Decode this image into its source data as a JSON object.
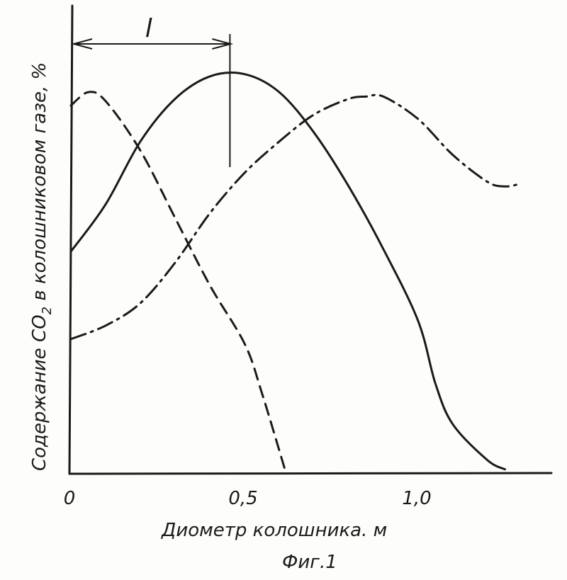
{
  "chart_data": {
    "type": "line",
    "title": "",
    "xlabel": "Диометр колошника. м",
    "ylabel_main": "Содержание CO",
    "ylabel_sub": "2",
    "ylabel_rest": " в колошниковом газе, %",
    "caption": "Фиг.1",
    "xlim": [
      0,
      1.4
    ],
    "ylim": [
      0,
      100
    ],
    "yticks_shown": false,
    "grid": false,
    "x_ticks": [
      {
        "value": 0,
        "label": "0"
      },
      {
        "value": 0.5,
        "label": "0,5"
      },
      {
        "value": 1.0,
        "label": "1,0"
      }
    ],
    "annotation": {
      "label": "l",
      "x_from": 0,
      "x_to": 0.46,
      "y": 96
    },
    "series": [
      {
        "style": "solid",
        "color": "#1a1a1a",
        "points": [
          [
            0,
            49.5
          ],
          [
            0.1,
            60
          ],
          [
            0.2,
            74
          ],
          [
            0.3,
            83.5
          ],
          [
            0.4,
            88.5
          ],
          [
            0.5,
            89
          ],
          [
            0.6,
            85
          ],
          [
            0.7,
            76
          ],
          [
            0.8,
            64
          ],
          [
            0.9,
            50
          ],
          [
            1.0,
            34
          ],
          [
            1.05,
            20
          ],
          [
            1.1,
            11
          ],
          [
            1.2,
            3
          ],
          [
            1.25,
            1
          ]
        ]
      },
      {
        "style": "dashed",
        "color": "#1a1a1a",
        "points": [
          [
            0,
            82
          ],
          [
            0.05,
            85
          ],
          [
            0.1,
            83
          ],
          [
            0.2,
            72
          ],
          [
            0.3,
            57
          ],
          [
            0.4,
            42
          ],
          [
            0.5,
            29
          ],
          [
            0.55,
            18
          ],
          [
            0.62,
            0
          ]
        ]
      },
      {
        "style": "dashdot",
        "color": "#1a1a1a",
        "points": [
          [
            0,
            30
          ],
          [
            0.1,
            33
          ],
          [
            0.2,
            38
          ],
          [
            0.3,
            47
          ],
          [
            0.4,
            58
          ],
          [
            0.5,
            67
          ],
          [
            0.6,
            74
          ],
          [
            0.7,
            80
          ],
          [
            0.8,
            83.5
          ],
          [
            0.85,
            84
          ],
          [
            0.9,
            84
          ],
          [
            1.0,
            79
          ],
          [
            1.1,
            71
          ],
          [
            1.2,
            65
          ],
          [
            1.25,
            64
          ],
          [
            1.29,
            64.5
          ]
        ]
      }
    ]
  }
}
